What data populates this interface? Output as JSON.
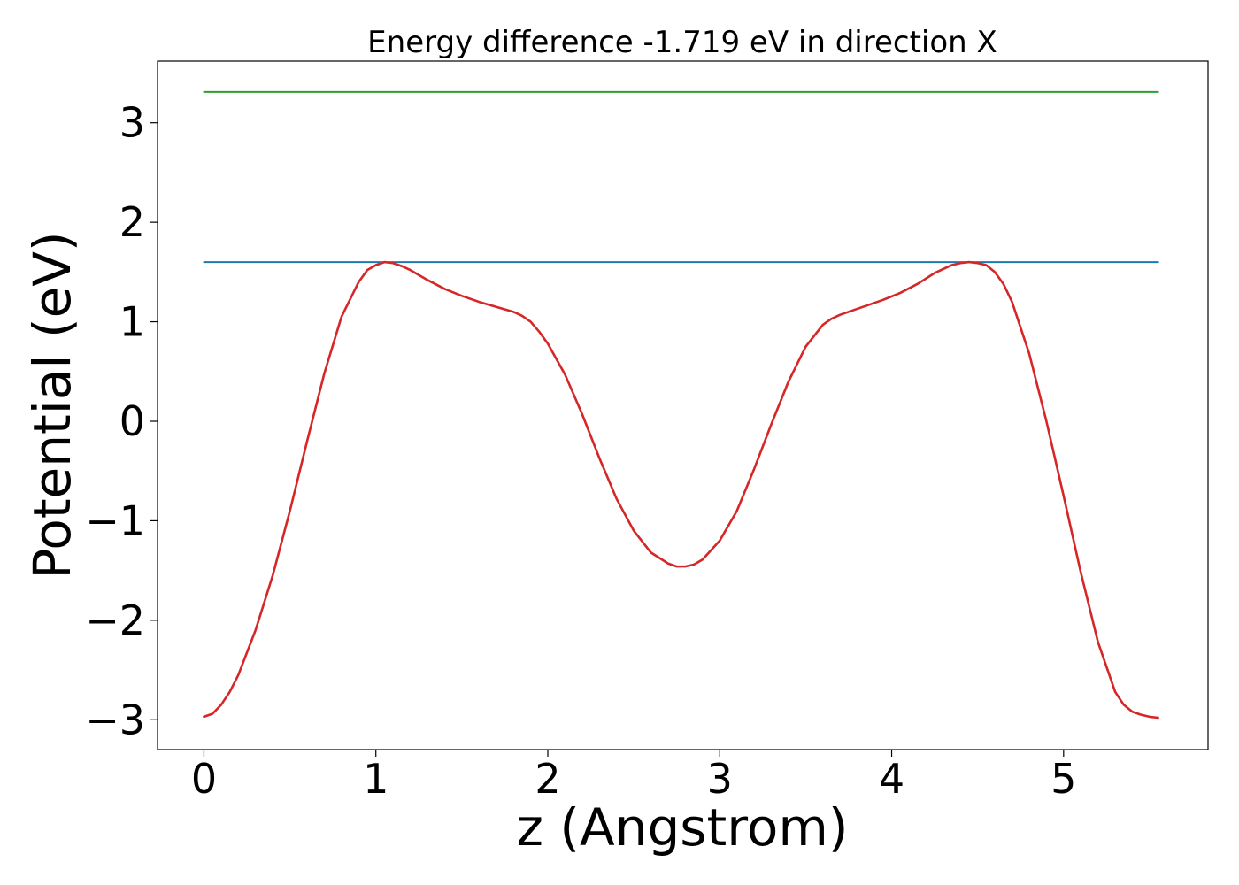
{
  "chart_data": {
    "type": "line",
    "title": "Energy difference -1.719 eV in direction X",
    "xlabel": "z (Angstrom)",
    "ylabel": "Potential (eV)",
    "xlim": [
      -0.27,
      5.84
    ],
    "ylim": [
      -3.3,
      3.62
    ],
    "xticks": [
      0,
      1,
      2,
      3,
      4,
      5
    ],
    "yticks": [
      -3,
      -2,
      -1,
      0,
      1,
      2,
      3
    ],
    "xtick_labels": [
      "0",
      "1",
      "2",
      "3",
      "4",
      "5"
    ],
    "ytick_labels": [
      "−3",
      "−2",
      "−1",
      "0",
      "1",
      "2",
      "3"
    ],
    "grid": false,
    "series": [
      {
        "color": "#2ca02c",
        "x": [
          0,
          5.55
        ],
        "y": [
          3.31,
          3.31
        ]
      },
      {
        "color": "#1f77b4",
        "x": [
          0,
          5.55
        ],
        "y": [
          1.6,
          1.6
        ]
      },
      {
        "color": "#d62728",
        "x": [
          0,
          0.05,
          0.1,
          0.15,
          0.2,
          0.3,
          0.4,
          0.5,
          0.6,
          0.7,
          0.8,
          0.9,
          0.95,
          1.0,
          1.05,
          1.1,
          1.15,
          1.2,
          1.3,
          1.4,
          1.5,
          1.6,
          1.7,
          1.8,
          1.85,
          1.9,
          1.95,
          2.0,
          2.1,
          2.2,
          2.3,
          2.4,
          2.5,
          2.6,
          2.7,
          2.75,
          2.8,
          2.85,
          2.9,
          3.0,
          3.1,
          3.2,
          3.3,
          3.4,
          3.5,
          3.6,
          3.65,
          3.7,
          3.75,
          3.85,
          3.95,
          4.05,
          4.15,
          4.25,
          4.35,
          4.4,
          4.45,
          4.5,
          4.55,
          4.6,
          4.65,
          4.7,
          4.8,
          4.9,
          5.0,
          5.1,
          5.2,
          5.3,
          5.35,
          5.4,
          5.45,
          5.5,
          5.55
        ],
        "y": [
          -2.97,
          -2.94,
          -2.85,
          -2.72,
          -2.55,
          -2.1,
          -1.55,
          -0.9,
          -0.2,
          0.48,
          1.05,
          1.4,
          1.52,
          1.57,
          1.6,
          1.59,
          1.56,
          1.52,
          1.42,
          1.33,
          1.26,
          1.2,
          1.15,
          1.1,
          1.06,
          1.0,
          0.9,
          0.78,
          0.47,
          0.07,
          -0.37,
          -0.78,
          -1.1,
          -1.32,
          -1.43,
          -1.46,
          -1.46,
          -1.44,
          -1.39,
          -1.2,
          -0.9,
          -0.48,
          -0.03,
          0.4,
          0.75,
          0.97,
          1.03,
          1.07,
          1.1,
          1.16,
          1.22,
          1.29,
          1.38,
          1.49,
          1.57,
          1.59,
          1.6,
          1.59,
          1.57,
          1.5,
          1.38,
          1.2,
          0.68,
          0.0,
          -0.75,
          -1.52,
          -2.22,
          -2.72,
          -2.85,
          -2.92,
          -2.95,
          -2.97,
          -2.98
        ]
      }
    ]
  }
}
